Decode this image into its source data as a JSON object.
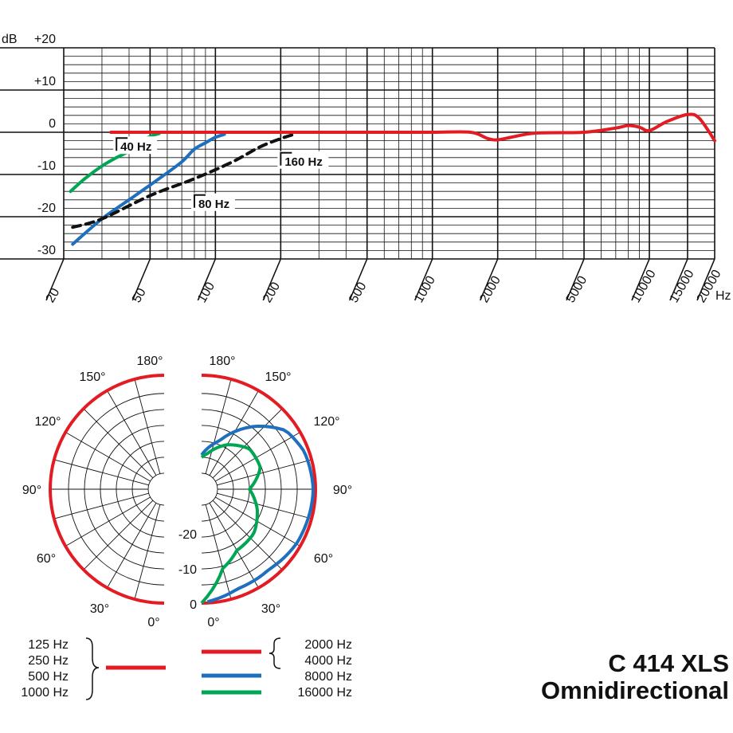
{
  "chart_data": [
    {
      "type": "line",
      "x_scale": "log",
      "xlim": [
        20,
        20000
      ],
      "ylim": [
        -30,
        20
      ],
      "grid": true,
      "y_unit": "dB",
      "x_unit": "Hz",
      "y_ticks": [
        "+20",
        "+10",
        "0",
        "-10",
        "-20",
        "-30"
      ],
      "y_tick_values": [
        20,
        10,
        0,
        -10,
        -20,
        -30
      ],
      "x_ticks": [
        "20",
        "50",
        "100",
        "200",
        "500",
        "1000",
        "2000",
        "5000",
        "10000",
        "15000",
        "20000"
      ],
      "x_tick_values": [
        20,
        50,
        100,
        200,
        500,
        1000,
        2000,
        5000,
        10000,
        15000,
        20000
      ],
      "annotations": [
        {
          "text": "40 Hz",
          "x": 35,
          "y": -4
        },
        {
          "text": "80 Hz",
          "x": 80,
          "y": -17.5
        },
        {
          "text": "160 Hz",
          "x": 200,
          "y": -7.5
        }
      ],
      "series": [
        {
          "color": "#e31c23",
          "style": "solid",
          "x": [
            33,
            60,
            100,
            200,
            500,
            1000,
            1500,
            1800,
            2000,
            2300,
            3000,
            5000,
            7000,
            8000,
            9000,
            10000,
            12000,
            15000,
            17000,
            20000
          ],
          "y": [
            0,
            0,
            0,
            0,
            0,
            0,
            0,
            -1.5,
            -1.8,
            -1.2,
            -0.2,
            0,
            1,
            1.6,
            1.2,
            0.4,
            2.5,
            4.2,
            3.3,
            -2
          ]
        },
        {
          "color": "#00a651",
          "style": "solid",
          "x": [
            21.5,
            25,
            30,
            35,
            40,
            45,
            50,
            55
          ],
          "y": [
            -14,
            -11,
            -8,
            -6,
            -4.5,
            -2.5,
            -1,
            -0.3
          ]
        },
        {
          "color": "#1f6fbf",
          "style": "solid",
          "x": [
            22,
            30,
            40,
            55,
            70,
            80,
            90,
            100,
            110
          ],
          "y": [
            -26.5,
            -20.5,
            -16,
            -11,
            -7,
            -4,
            -2.5,
            -1.2,
            -0.5
          ]
        },
        {
          "color": "#111111",
          "style": "dashed",
          "x": [
            22,
            30,
            50,
            80,
            120,
            160,
            200,
            230
          ],
          "y": [
            -22.5,
            -20.5,
            -15,
            -11,
            -7,
            -3.5,
            -1.5,
            -0.5
          ]
        }
      ]
    },
    {
      "type": "polar",
      "r_ticks": [
        "-20",
        "-10",
        "0"
      ],
      "r_tick_values": [
        -20,
        -10,
        0
      ],
      "angle_labels_left": [
        "180°",
        "150°",
        "120°",
        "90°",
        "60°",
        "30°",
        "0°"
      ],
      "angle_labels_right": [
        "180°",
        "150°",
        "120°",
        "90°",
        "60°",
        "30°",
        "0°"
      ],
      "angle_values": [
        180,
        150,
        120,
        90,
        60,
        30,
        0
      ],
      "left_curve": {
        "color": "#e31c23",
        "frequencies": [
          "125 Hz",
          "250 Hz",
          "500 Hz",
          "1000 Hz"
        ],
        "level_db": 0
      },
      "right_curves": [
        {
          "color": "#e31c23",
          "frequencies": [
            "2000 Hz",
            "4000 Hz"
          ]
        },
        {
          "color": "#1f6fbf",
          "frequencies": [
            "8000 Hz"
          ]
        },
        {
          "color": "#00a651",
          "frequencies": [
            "16000 Hz"
          ]
        }
      ]
    }
  ],
  "legend": {
    "left": [
      "125 Hz",
      "250 Hz",
      "500 Hz",
      "1000 Hz"
    ],
    "right": [
      "2000 Hz",
      "4000 Hz",
      "8000 Hz",
      "16000 Hz"
    ]
  },
  "product": {
    "name": "C 414 XLS",
    "pattern": "Omnidirectional"
  },
  "colors": {
    "red": "#e31c23",
    "blue": "#1f6fbf",
    "green": "#00a651",
    "black": "#111111"
  }
}
